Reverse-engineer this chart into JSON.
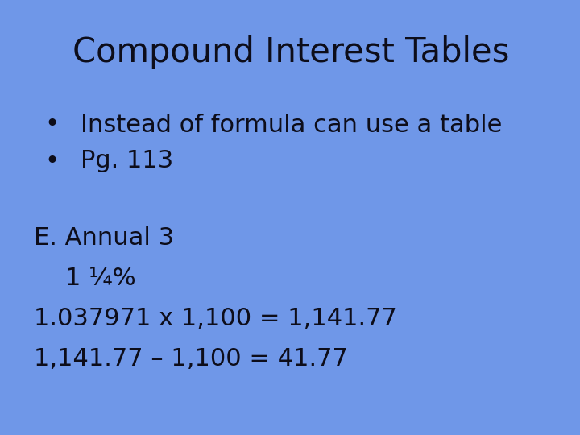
{
  "title": "Compound Interest Tables",
  "bg_color": "#6b94e8",
  "text_color": "#0d0d1a",
  "title_fontsize": 30,
  "body_fontsize": 22,
  "bullet1": "Instead of formula can use a table",
  "bullet2": "Pg. 113",
  "line1": "E. Annual 3",
  "line2": "    1 ¼%",
  "line3": "1.037971 x 1,100 = 1,141.77",
  "line4": "1,141.77 – 1,100 = 41.77"
}
